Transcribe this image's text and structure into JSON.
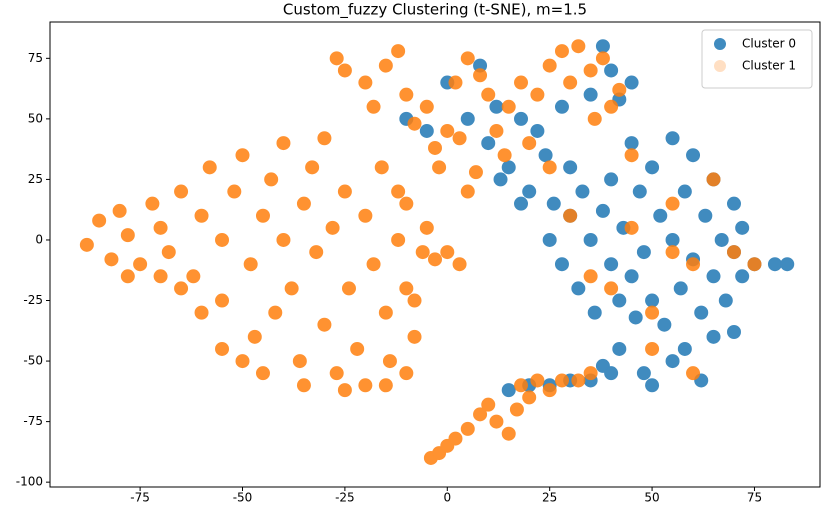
{
  "chart_data": {
    "type": "scatter",
    "title": "Custom_fuzzy Clustering (t-SNE), m=1.5",
    "xlim": [
      -97,
      91
    ],
    "ylim": [
      -102,
      90
    ],
    "xticks": [
      -75,
      -50,
      -25,
      0,
      25,
      50,
      75
    ],
    "yticks": [
      -100,
      -75,
      -50,
      -25,
      0,
      25,
      50,
      75
    ],
    "grid": false,
    "legend": "upper right",
    "series": [
      {
        "name": "Cluster 0",
        "color": "#1f77b4",
        "x": [
          25,
          28,
          30,
          32,
          33,
          35,
          36,
          38,
          40,
          40,
          42,
          43,
          45,
          45,
          47,
          48,
          50,
          50,
          52,
          53,
          55,
          55,
          57,
          58,
          60,
          60,
          62,
          63,
          65,
          65,
          67,
          68,
          70,
          70,
          72,
          72,
          75,
          80,
          83,
          46,
          58,
          65,
          70,
          55,
          48,
          62,
          50,
          38,
          42,
          -10,
          -5,
          0,
          5,
          8,
          10,
          12,
          15,
          18,
          20,
          22,
          24,
          26,
          28,
          30,
          35,
          38,
          40,
          42,
          45,
          18,
          13,
          15,
          20,
          25,
          30,
          35,
          40
        ],
        "values": [
          0,
          -10,
          10,
          -20,
          20,
          0,
          -30,
          12,
          -10,
          25,
          -25,
          5,
          40,
          -15,
          20,
          -5,
          30,
          -25,
          10,
          -35,
          42,
          0,
          -20,
          20,
          35,
          -8,
          -30,
          10,
          25,
          -15,
          0,
          -25,
          15,
          -5,
          -15,
          5,
          -10,
          -10,
          -10,
          -32,
          -45,
          -40,
          -38,
          -50,
          -55,
          -58,
          -60,
          -52,
          -45,
          50,
          45,
          65,
          50,
          72,
          40,
          55,
          30,
          50,
          20,
          45,
          35,
          15,
          55,
          30,
          60,
          80,
          70,
          58,
          65,
          15,
          25,
          -62,
          -60,
          -60,
          -58,
          -58,
          -55
        ]
      },
      {
        "name": "Cluster 1",
        "color": "#ff7f0e",
        "x": [
          -88,
          -85,
          -82,
          -80,
          -78,
          -75,
          -72,
          -70,
          -68,
          -65,
          -62,
          -60,
          -58,
          -55,
          -55,
          -52,
          -50,
          -48,
          -47,
          -45,
          -43,
          -42,
          -40,
          -40,
          -38,
          -36,
          -35,
          -33,
          -32,
          -30,
          -30,
          -28,
          -27,
          -25,
          -24,
          -22,
          -20,
          -20,
          -18,
          -16,
          -15,
          -14,
          -12,
          -12,
          -10,
          -8,
          -6,
          -5,
          -3,
          -10,
          -45,
          -50,
          -60,
          -65,
          -70,
          -78,
          -55,
          -35,
          -25,
          -15,
          -10,
          -8,
          0,
          3,
          -27,
          -25,
          -20,
          -18,
          -15,
          -12,
          -10,
          -8,
          -5,
          -3,
          -2,
          0,
          2,
          3,
          5,
          8,
          10,
          12,
          14,
          15,
          5,
          7,
          18,
          22,
          25,
          28,
          30,
          32,
          35,
          38,
          40,
          42,
          36,
          20,
          25,
          -4,
          -2,
          0,
          2,
          5,
          8,
          10,
          12,
          15,
          17,
          18,
          20,
          22,
          25,
          28,
          32,
          35,
          30,
          40,
          45,
          50,
          55,
          60,
          65,
          70,
          50,
          60,
          45,
          35,
          55,
          75
        ],
        "values": [
          -2,
          8,
          -8,
          12,
          2,
          -10,
          15,
          5,
          -5,
          20,
          -15,
          10,
          30,
          0,
          -25,
          20,
          35,
          -10,
          -40,
          10,
          25,
          -30,
          40,
          0,
          -20,
          -50,
          15,
          30,
          -5,
          -35,
          42,
          5,
          -55,
          20,
          -20,
          -45,
          10,
          -60,
          -10,
          30,
          -30,
          -50,
          0,
          20,
          -20,
          -40,
          -5,
          5,
          -8,
          15,
          -55,
          -50,
          -30,
          -20,
          -15,
          -15,
          -45,
          -60,
          -62,
          -60,
          -55,
          -25,
          -5,
          -10,
          75,
          70,
          65,
          55,
          72,
          78,
          60,
          48,
          55,
          38,
          30,
          45,
          65,
          42,
          75,
          68,
          60,
          45,
          35,
          55,
          20,
          28,
          65,
          60,
          72,
          78,
          65,
          80,
          70,
          75,
          55,
          62,
          50,
          40,
          30,
          -90,
          -88,
          -85,
          -82,
          -78,
          -72,
          -68,
          -75,
          -80,
          -70,
          -60,
          -65,
          -58,
          -62,
          -58,
          -58,
          -55,
          10,
          -20,
          5,
          -30,
          15,
          -10,
          25,
          -5,
          -45,
          -55,
          35,
          -15,
          -5,
          -10
        ]
      }
    ]
  }
}
